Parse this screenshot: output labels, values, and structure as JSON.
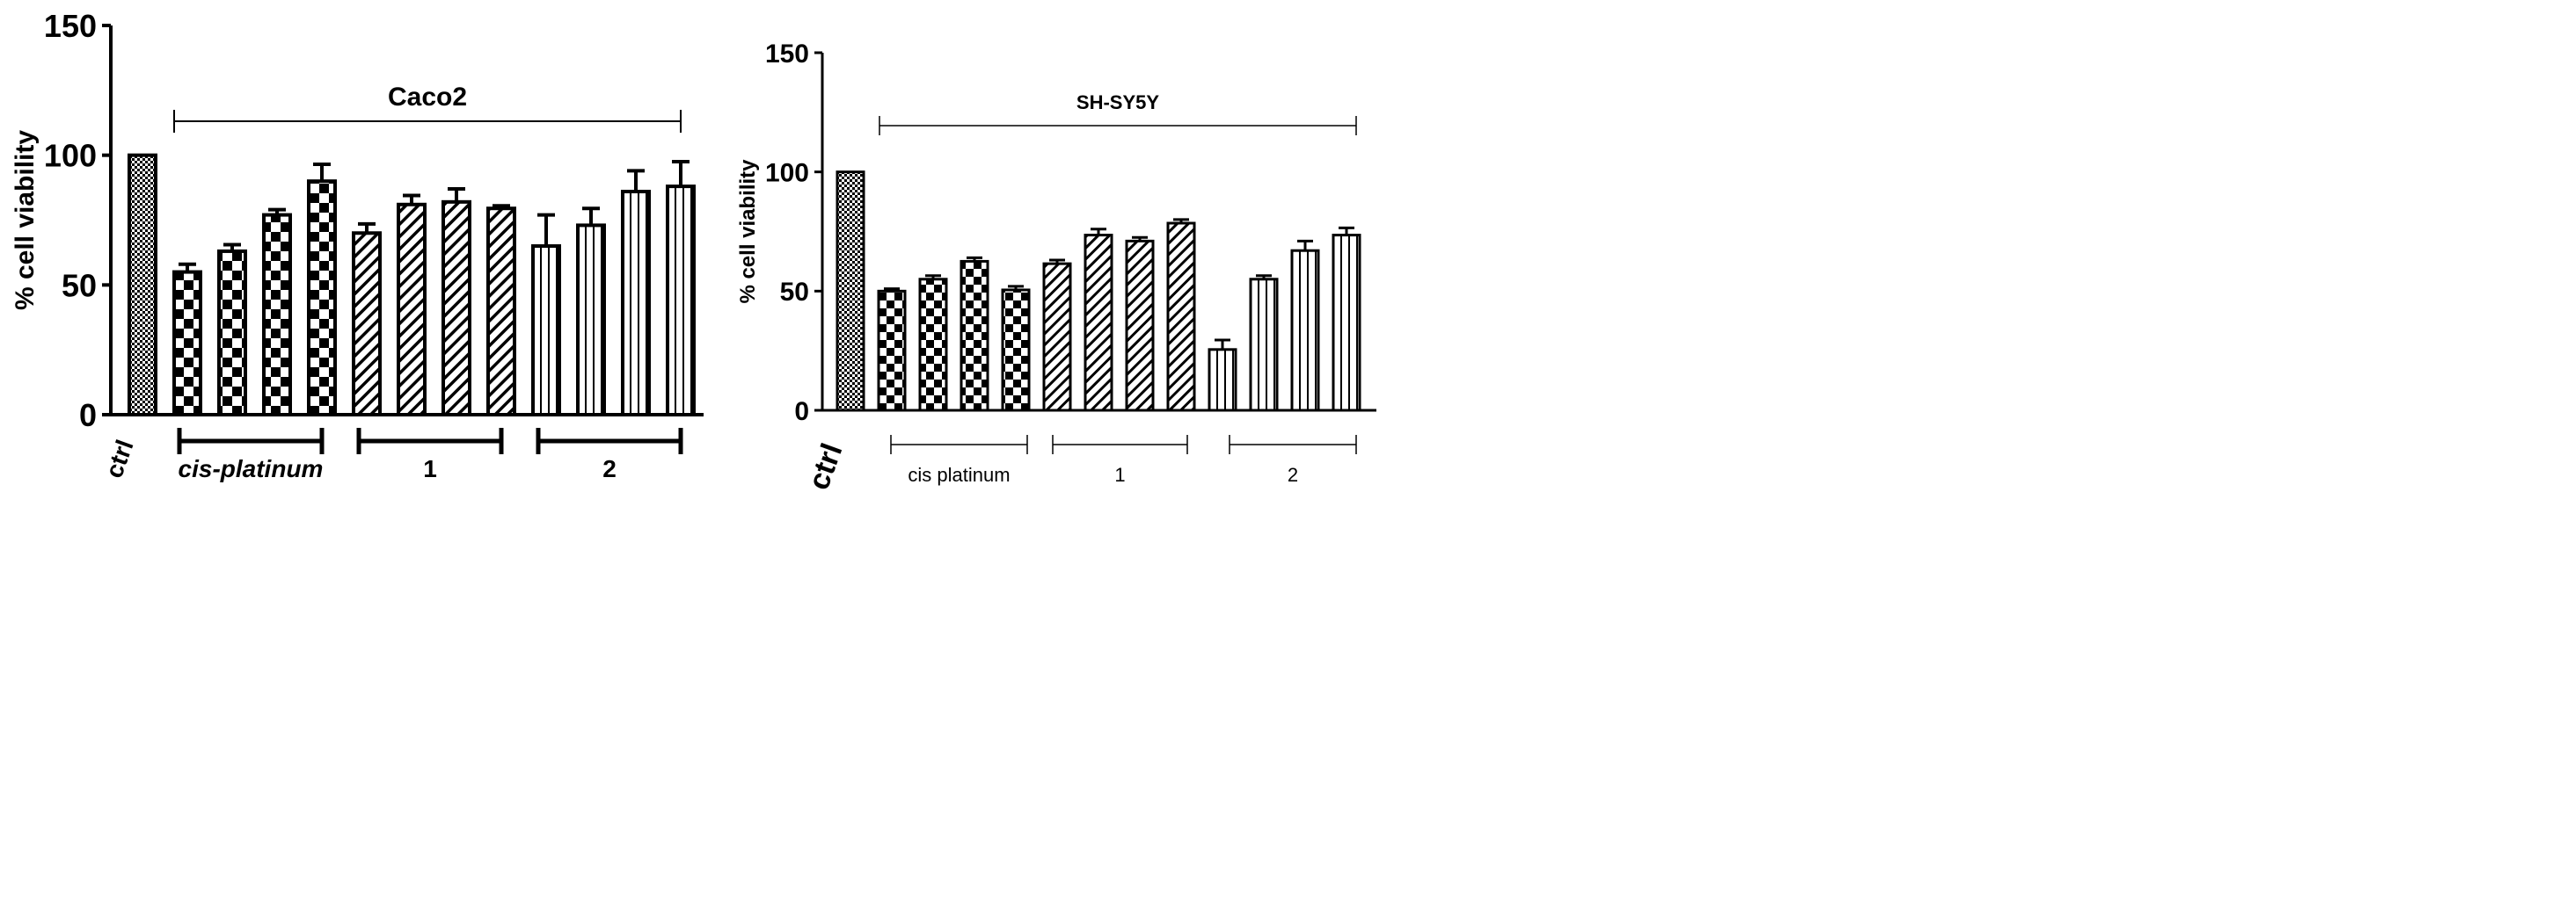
{
  "chart_data": [
    {
      "type": "bar",
      "title": "Caco2",
      "ylabel": "% cell viability",
      "ylim": [
        0,
        150
      ],
      "yticks": [
        "0",
        "50",
        "100",
        "150"
      ],
      "ctrl_label": "ctrl",
      "bars": [
        {
          "group": "ctrl",
          "value": 100,
          "error": 0,
          "pattern": "fine"
        },
        {
          "group": "cis-platinum",
          "value": 55,
          "error": 3,
          "pattern": "check"
        },
        {
          "group": "cis-platinum",
          "value": 63,
          "error": 2.5,
          "pattern": "check"
        },
        {
          "group": "cis-platinum",
          "value": 77,
          "error": 2,
          "pattern": "check"
        },
        {
          "group": "cis-platinum",
          "value": 90,
          "error": 6.5,
          "pattern": "check"
        },
        {
          "group": "1",
          "value": 70,
          "error": 3.5,
          "pattern": "diag"
        },
        {
          "group": "1",
          "value": 81,
          "error": 3.5,
          "pattern": "diag"
        },
        {
          "group": "1",
          "value": 82,
          "error": 5,
          "pattern": "diag"
        },
        {
          "group": "1",
          "value": 79.5,
          "error": 1,
          "pattern": "diag"
        },
        {
          "group": "2",
          "value": 65,
          "error": 12,
          "pattern": "vert"
        },
        {
          "group": "2",
          "value": 73,
          "error": 6.5,
          "pattern": "vert"
        },
        {
          "group": "2",
          "value": 86,
          "error": 8,
          "pattern": "vert"
        },
        {
          "group": "2",
          "value": 88,
          "error": 9.5,
          "pattern": "vert"
        }
      ],
      "group_labels": [
        "cis-platinum",
        "1",
        "2"
      ]
    },
    {
      "type": "bar",
      "title": "SH-SY5Y",
      "ylabel": "% cell viability",
      "ylim": [
        0,
        150
      ],
      "yticks": [
        "0",
        "50",
        "100",
        "150"
      ],
      "ctrl_label": "ctrl",
      "bars": [
        {
          "group": "ctrl",
          "value": 100,
          "error": 0,
          "pattern": "fine"
        },
        {
          "group": "cis platinum",
          "value": 50,
          "error": 1,
          "pattern": "check"
        },
        {
          "group": "cis platinum",
          "value": 55,
          "error": 1.5,
          "pattern": "check"
        },
        {
          "group": "cis platinum",
          "value": 62.5,
          "error": 1.5,
          "pattern": "check"
        },
        {
          "group": "cis platinum",
          "value": 50.5,
          "error": 1.5,
          "pattern": "check"
        },
        {
          "group": "1",
          "value": 61.5,
          "error": 1.5,
          "pattern": "diag"
        },
        {
          "group": "1",
          "value": 73.5,
          "error": 2.5,
          "pattern": "diag"
        },
        {
          "group": "1",
          "value": 71,
          "error": 1.5,
          "pattern": "diag"
        },
        {
          "group": "1",
          "value": 78.5,
          "error": 1.5,
          "pattern": "diag"
        },
        {
          "group": "2",
          "value": 25.5,
          "error": 4,
          "pattern": "vert"
        },
        {
          "group": "2",
          "value": 55,
          "error": 1.5,
          "pattern": "vert"
        },
        {
          "group": "2",
          "value": 67,
          "error": 4,
          "pattern": "vert"
        },
        {
          "group": "2",
          "value": 73.5,
          "error": 3,
          "pattern": "vert"
        }
      ],
      "group_labels": [
        "cis platinum",
        "1",
        "2"
      ]
    }
  ]
}
